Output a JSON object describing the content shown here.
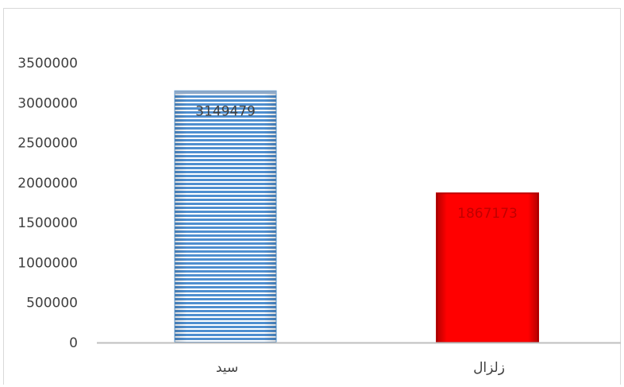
{
  "chart_data": {
    "type": "bar",
    "categories": [
      "سيد",
      "زلزال"
    ],
    "values": [
      3149479,
      1867173
    ],
    "data_labels": [
      "3149479",
      "1867173"
    ],
    "ylim": [
      0,
      3500000
    ],
    "yticks": [
      "0",
      "500000",
      "1000000",
      "1500000",
      "2000000",
      "2500000",
      "3000000",
      "3500000"
    ],
    "title": "",
    "xlabel": "",
    "ylabel": "",
    "grid": false,
    "legend": "none",
    "colors": {
      "bar_1_fill": "#9dc3e6",
      "bar_1_stripe": "#2e75b6",
      "bar_1_border": "#5b9bd5",
      "bar_2_fill": "#ff0000",
      "bar_2_border": "#c00000",
      "label_1_text": "#404040",
      "label_2_text": "#c00000",
      "axis": "#bfbfbf",
      "frame": "#d9d9d9"
    }
  }
}
